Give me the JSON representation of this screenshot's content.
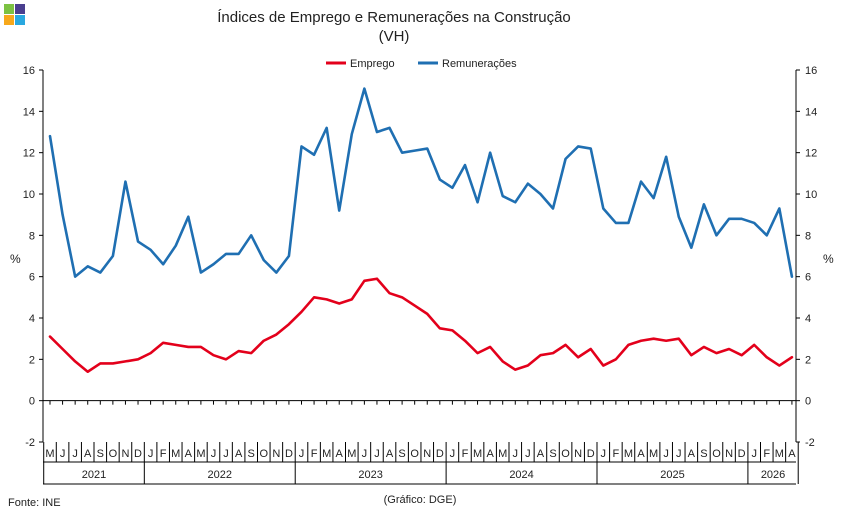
{
  "chart_data": {
    "type": "line",
    "title": "Índices de Emprego e Remunerações na Construção",
    "subtitle": "(VH)",
    "ylabel_left": "%",
    "ylabel_right": "%",
    "ylim": [
      -2,
      16
    ],
    "yticks": [
      -2,
      0,
      2,
      4,
      6,
      8,
      10,
      12,
      14,
      16
    ],
    "legend_position": "top-center",
    "grid": false,
    "month_labels": [
      "M",
      "J",
      "J",
      "A",
      "S",
      "O",
      "N",
      "D",
      "J",
      "F",
      "M",
      "A",
      "M",
      "J",
      "J",
      "A",
      "S",
      "O",
      "N",
      "D",
      "J",
      "F",
      "M",
      "A",
      "M",
      "J",
      "J",
      "A",
      "S",
      "O",
      "N",
      "D",
      "J",
      "F",
      "M",
      "A",
      "M",
      "J",
      "J",
      "A",
      "S",
      "O",
      "N",
      "D",
      "J",
      "F",
      "M",
      "A",
      "M",
      "J",
      "J",
      "A",
      "S",
      "O",
      "N",
      "D",
      "J",
      "F",
      "M",
      "A"
    ],
    "years": [
      {
        "label": "2021",
        "months": 8
      },
      {
        "label": "2022",
        "months": 12
      },
      {
        "label": "2023",
        "months": 12
      },
      {
        "label": "2024",
        "months": 12
      },
      {
        "label": "2025",
        "months": 12
      },
      {
        "label": "2026",
        "months": 4
      }
    ],
    "series": [
      {
        "name": "Emprego",
        "color": "#e3001b",
        "values": [
          3.1,
          2.5,
          1.9,
          1.4,
          1.8,
          1.8,
          1.9,
          2.0,
          2.3,
          2.8,
          2.7,
          2.6,
          2.6,
          2.2,
          2.0,
          2.4,
          2.3,
          2.9,
          3.2,
          3.7,
          4.3,
          5.0,
          4.9,
          4.7,
          4.9,
          5.8,
          5.9,
          5.2,
          5.0,
          4.6,
          4.2,
          3.5,
          3.4,
          2.9,
          2.3,
          2.6,
          1.9,
          1.5,
          1.7,
          2.2,
          2.3,
          2.7,
          2.1,
          2.5,
          1.7,
          2.0,
          2.7,
          2.9,
          3.0,
          2.9,
          3.0,
          2.2,
          2.6,
          2.3,
          2.5,
          2.2,
          2.7,
          2.1,
          1.7,
          2.1
        ]
      },
      {
        "name": "Remunerações",
        "color": "#1f6fb2",
        "values": [
          12.8,
          9.0,
          6.0,
          6.5,
          6.2,
          7.0,
          10.6,
          7.7,
          7.3,
          6.6,
          7.5,
          8.9,
          6.2,
          6.6,
          7.1,
          7.1,
          8.0,
          6.8,
          6.2,
          7.0,
          12.3,
          11.9,
          13.2,
          9.2,
          12.9,
          15.1,
          13.0,
          13.2,
          12.0,
          12.1,
          12.2,
          10.7,
          10.3,
          11.4,
          9.6,
          12.0,
          9.9,
          9.6,
          10.5,
          10.0,
          9.3,
          11.7,
          12.3,
          12.2,
          9.3,
          8.6,
          8.6,
          10.6,
          9.8,
          11.8,
          8.9,
          7.4,
          9.5,
          8.0,
          8.8,
          8.8,
          8.6,
          8.0,
          9.3,
          6.0
        ]
      }
    ]
  },
  "footer": {
    "source": "Fonte: INE",
    "credit": "(Gráfico: DGE)"
  },
  "logo": {
    "colors": [
      "#7cc242",
      "#4a3f8f",
      "#f7a81b",
      "#29a8e0"
    ]
  }
}
